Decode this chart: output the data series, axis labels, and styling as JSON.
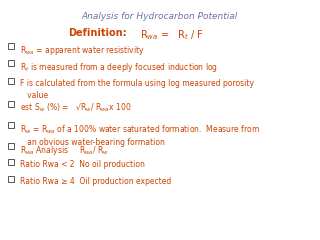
{
  "title": "Analysis for Hydrocarbon Potential",
  "title_color": "#7070a0",
  "title_fontsize": 6.5,
  "def_label": "Definition:",
  "def_formula": "R$_{wa}$ =   R$_t$ / F",
  "def_color": "#cc4400",
  "def_fontsize": 7.0,
  "bullet_color": "#cc4400",
  "bullet_fontsize": 5.5,
  "bg_color": "#ffffff",
  "checkbox_color": "#555555",
  "bullets": [
    "R$_{wa}$ = apparent water resistivity",
    "R$_t$ is measured from a deeply focused induction log",
    "F is calculated from the formula using log measured porosity\n   value",
    "est S$_w$ (%) =   √R$_w$/ R$_{wa}$x 100",
    "R$_w$ = R$_{wa}$ of a 100% water saturated formation.  Measure from\n   an obvious water-bearing formation",
    "R$_{wa}$ Analysis     R$_{wa}$/ R$_w$",
    "Ratio Rwa < 2  No oil production",
    "Ratio Rwa ≥ 4  Oil production expected"
  ]
}
